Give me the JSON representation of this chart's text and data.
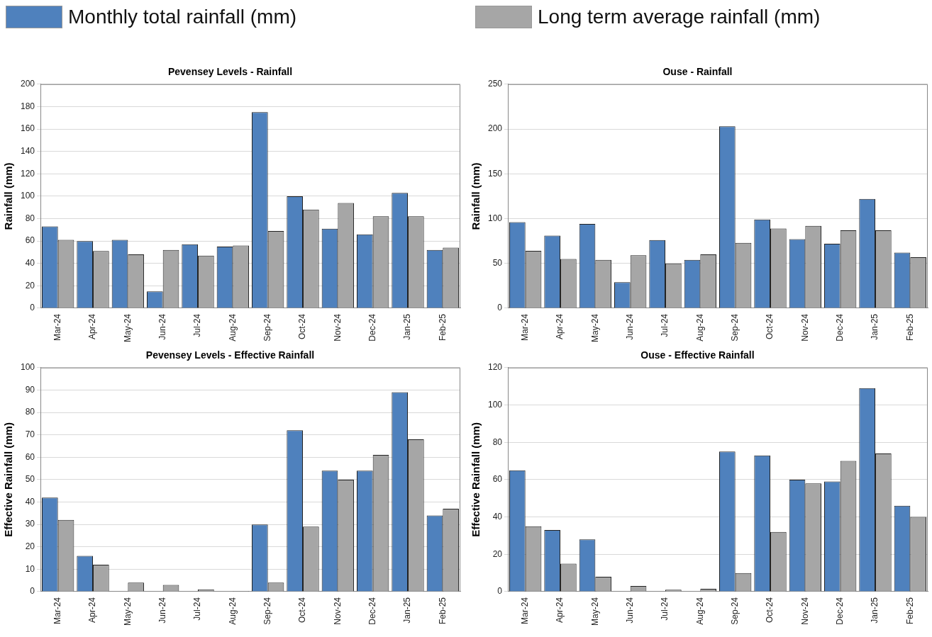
{
  "chart_data": [
    {
      "type": "bar",
      "title": "Pevensey Levels - Rainfall",
      "ylabel": "Rainfall (mm)",
      "categories": [
        "Mar-24",
        "Apr-24",
        "May-24",
        "Jun-24",
        "Jul-24",
        "Aug-24",
        "Sep-24",
        "Oct-24",
        "Nov-24",
        "Dec-24",
        "Jan-25",
        "Feb-25"
      ],
      "series": [
        {
          "name": "Monthly total rainfall (mm)",
          "color": "#4f81bd",
          "values": [
            73,
            60,
            61,
            15,
            57,
            55,
            175,
            100,
            71,
            66,
            103,
            52
          ]
        },
        {
          "name": "Long term average rainfall (mm)",
          "color": "#a6a6a6",
          "values": [
            61,
            51,
            48,
            52,
            47,
            56,
            69,
            88,
            94,
            82,
            82,
            54
          ]
        }
      ],
      "ylim": [
        0,
        200
      ],
      "yticks": [
        0,
        20,
        40,
        60,
        80,
        100,
        120,
        140,
        160,
        180,
        200
      ],
      "grid": "y",
      "legend": "top"
    },
    {
      "type": "bar",
      "title": "Ouse - Rainfall",
      "ylabel": "Rainfall (mm)",
      "categories": [
        "Mar-24",
        "Apr-24",
        "May-24",
        "Jun-24",
        "Jul-24",
        "Aug-24",
        "Sep-24",
        "Oct-24",
        "Nov-24",
        "Dec-24",
        "Jan-25",
        "Feb-25"
      ],
      "series": [
        {
          "color": "#4f81bd",
          "values": [
            96,
            81,
            94,
            29,
            76,
            54,
            203,
            99,
            77,
            72,
            122,
            62
          ]
        },
        {
          "color": "#a6a6a6",
          "values": [
            64,
            55,
            54,
            59,
            50,
            60,
            73,
            89,
            92,
            87,
            87,
            57
          ]
        }
      ],
      "ylim": [
        0,
        250
      ],
      "yticks": [
        0,
        50,
        100,
        150,
        200,
        250
      ],
      "grid": "y"
    },
    {
      "type": "bar",
      "title": "Pevensey Levels - Effective Rainfall",
      "ylabel": "Effective Rainfall (mm)",
      "categories": [
        "Mar-24",
        "Apr-24",
        "May-24",
        "Jun-24",
        "Jul-24",
        "Aug-24",
        "Sep-24",
        "Oct-24",
        "Nov-24",
        "Dec-24",
        "Jan-25",
        "Feb-25"
      ],
      "series": [
        {
          "color": "#4f81bd",
          "values": [
            42,
            16,
            0,
            0,
            0,
            0,
            30,
            72,
            54,
            54,
            89,
            34
          ]
        },
        {
          "color": "#a6a6a6",
          "values": [
            32,
            12,
            4,
            3,
            1,
            0.3,
            4,
            29,
            50,
            61,
            68,
            37
          ]
        }
      ],
      "ylim": [
        0,
        100
      ],
      "yticks": [
        0,
        10,
        20,
        30,
        40,
        50,
        60,
        70,
        80,
        90,
        100
      ],
      "grid": "y"
    },
    {
      "type": "bar",
      "title": "Ouse - Effective Rainfall",
      "ylabel": "Effective Rainfall (mm)",
      "categories": [
        "Mar-24",
        "Apr-24",
        "May-24",
        "Jun-24",
        "Jul-24",
        "Aug-24",
        "Sep-24",
        "Oct-24",
        "Nov-24",
        "Dec-24",
        "Jan-25",
        "Feb-25"
      ],
      "series": [
        {
          "color": "#4f81bd",
          "values": [
            65,
            33,
            28,
            0,
            0,
            0,
            75,
            73,
            60,
            59,
            109,
            46
          ]
        },
        {
          "color": "#a6a6a6",
          "values": [
            35,
            15,
            8,
            3,
            1,
            1.5,
            10,
            32,
            58,
            70,
            74,
            40
          ]
        }
      ],
      "ylim": [
        0,
        120
      ],
      "yticks": [
        0,
        20,
        40,
        60,
        80,
        100,
        120
      ],
      "grid": "y"
    }
  ]
}
